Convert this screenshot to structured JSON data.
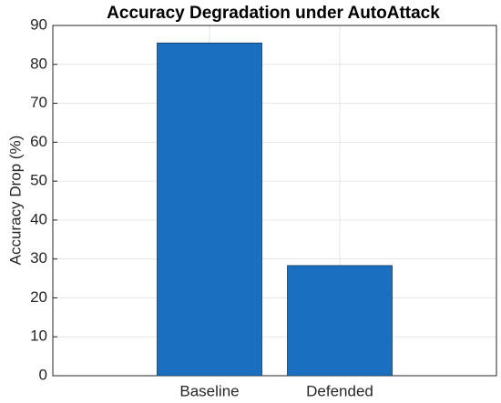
{
  "chart_data": {
    "type": "bar",
    "title": "Accuracy Degradation under AutoAttack",
    "y_label": "Accuracy Drop (%)",
    "categories": [
      "Baseline",
      "Defended"
    ],
    "values": [
      85.5,
      28.3
    ],
    "color": "#1a6fc0",
    "ylim": [
      0,
      90
    ],
    "yticks": [
      0,
      10,
      20,
      30,
      40,
      50,
      60,
      70,
      80,
      90
    ],
    "grid": true
  }
}
